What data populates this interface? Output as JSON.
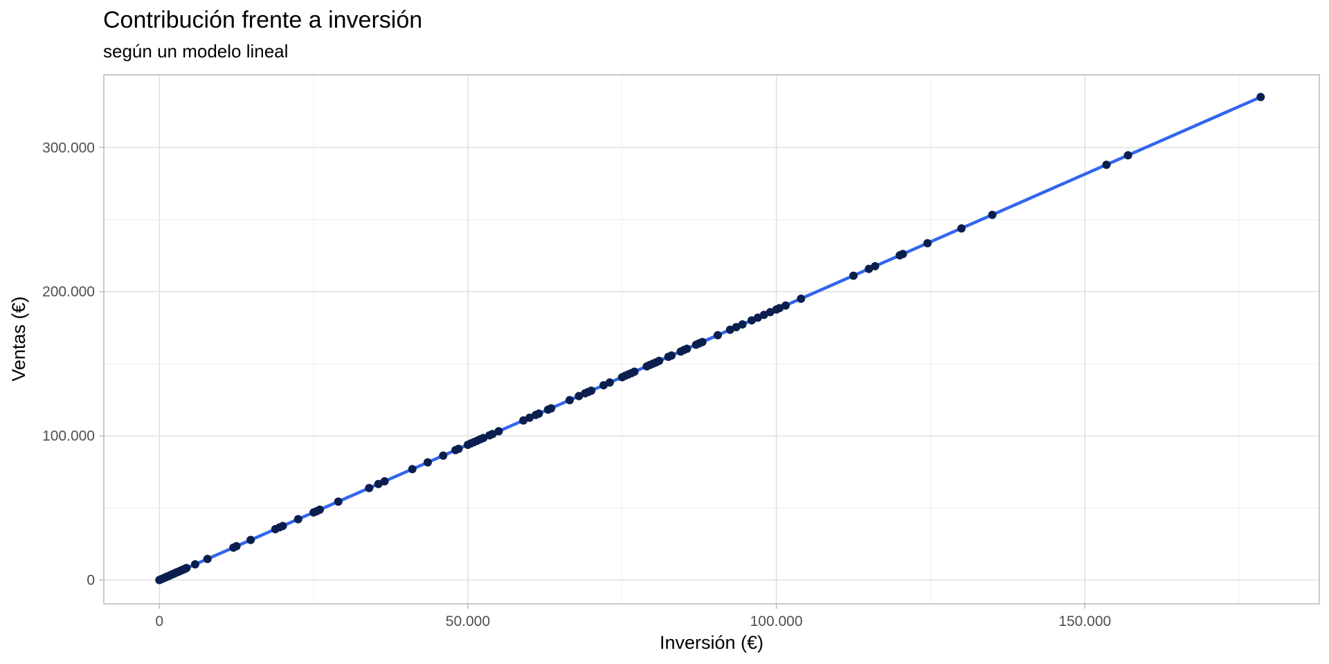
{
  "chart_data": {
    "type": "scatter",
    "title": "Contribución frente a inversión",
    "subtitle": "según un modelo lineal",
    "xlabel": "Inversión (€)",
    "ylabel": "Ventas (€)",
    "xlim": [
      -9000,
      188000
    ],
    "ylim": [
      -16500,
      350500
    ],
    "x_ticks": [
      0,
      50000,
      100000,
      150000
    ],
    "x_tick_labels": [
      "0",
      "50.000",
      "100.000",
      "150.000"
    ],
    "y_ticks": [
      0,
      100000,
      200000,
      300000
    ],
    "y_tick_labels": [
      "0",
      "100.000",
      "200.000",
      "300.000"
    ],
    "grid": true,
    "legend": "none",
    "colors": {
      "points": "#0b1f4f",
      "line": "#3366ee"
    },
    "fit_line": {
      "x": [
        0,
        178500
      ],
      "y": [
        0,
        335000
      ]
    },
    "x": [
      0,
      200,
      400,
      600,
      800,
      1000,
      1200,
      1400,
      1600,
      1800,
      2000,
      2200,
      2400,
      2600,
      2800,
      3000,
      3200,
      3400,
      3600,
      3800,
      4000,
      4200,
      4400,
      5800,
      7800,
      12000,
      12500,
      14800,
      18800,
      19500,
      20000,
      22500,
      25000,
      25500,
      26000,
      29000,
      34000,
      35500,
      36500,
      41000,
      43500,
      46000,
      48000,
      48500,
      50000,
      50500,
      51000,
      51500,
      52000,
      52500,
      53500,
      54000,
      55000,
      59000,
      60000,
      61000,
      61500,
      63000,
      63500,
      66500,
      68000,
      69000,
      69500,
      70000,
      72000,
      73000,
      75000,
      75500,
      76000,
      76500,
      77000,
      79000,
      79500,
      80000,
      80500,
      81000,
      82500,
      83000,
      84500,
      85000,
      85500,
      87000,
      87500,
      88000,
      90500,
      92500,
      93500,
      94500,
      96000,
      97000,
      98000,
      99000,
      100000,
      100500,
      101500,
      104000,
      112500,
      115000,
      116000,
      120000,
      120500,
      124500,
      130000,
      135000,
      153500,
      157000,
      178500
    ],
    "y": [
      0,
      400,
      800,
      1100,
      1500,
      1900,
      2300,
      2600,
      3000,
      3400,
      3800,
      4100,
      4500,
      4900,
      5300,
      5600,
      6000,
      6400,
      6800,
      7100,
      7500,
      7900,
      8300,
      10900,
      14600,
      22500,
      23500,
      27800,
      35300,
      36600,
      37500,
      42200,
      46900,
      47800,
      48800,
      54400,
      63800,
      66600,
      68500,
      76900,
      81600,
      86300,
      90100,
      91000,
      93800,
      94800,
      95700,
      96600,
      97600,
      98500,
      100400,
      101300,
      103200,
      110700,
      112600,
      114500,
      115400,
      118200,
      119100,
      124800,
      127600,
      129500,
      130400,
      131300,
      135100,
      137000,
      140700,
      141700,
      142600,
      143500,
      144500,
      148200,
      149200,
      150100,
      151000,
      152000,
      154800,
      155700,
      158500,
      159500,
      160400,
      163200,
      164200,
      165100,
      169800,
      173600,
      175400,
      177300,
      180100,
      182000,
      183900,
      185800,
      187600,
      188600,
      190400,
      195100,
      211100,
      215800,
      217700,
      225200,
      226100,
      233600,
      243900,
      253300,
      288000,
      294600,
      335000
    ]
  }
}
